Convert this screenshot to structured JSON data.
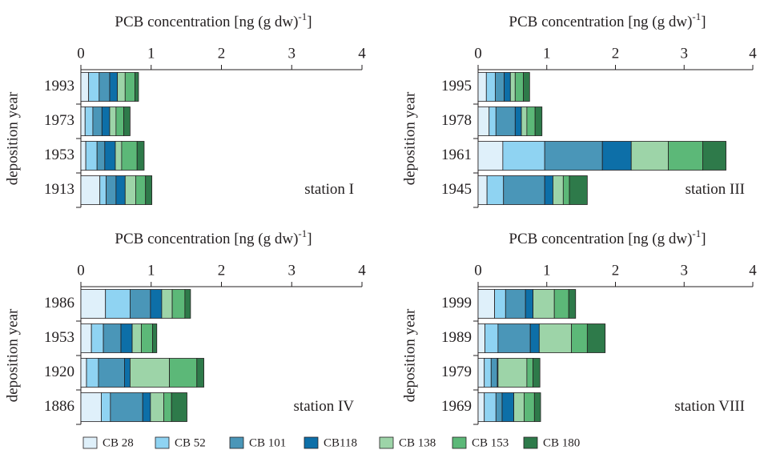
{
  "legend": [
    {
      "name": "CB 28",
      "color": "#dff0fa"
    },
    {
      "name": "CB 52",
      "color": "#8fd3f2"
    },
    {
      "name": "CB 101",
      "color": "#4a96b8"
    },
    {
      "name": "CB118",
      "color": "#0d6fa8"
    },
    {
      "name": "CB 138",
      "color": "#9dd4a8"
    },
    {
      "name": "CB 153",
      "color": "#5cb878"
    },
    {
      "name": "CB 180",
      "color": "#2e7a4a"
    }
  ],
  "chart_data": [
    {
      "type": "stacked-bar-horizontal",
      "xlabel": {
        "text": "PCB concentration [ng (g dw)",
        "superscript": "-1",
        "suffix": "]"
      },
      "ylabel": "deposition year",
      "annotation": "station I",
      "categories": [
        "1993",
        "1973",
        "1953",
        "1913"
      ],
      "xlim": [
        0,
        4
      ],
      "xticks": [
        0,
        1,
        2,
        3,
        4
      ],
      "segments": [
        [
          0.11,
          0.06,
          0.07,
          0.27
        ],
        [
          0.15,
          0.11,
          0.16,
          0.09
        ],
        [
          0.15,
          0.13,
          0.11,
          0.14
        ],
        [
          0.11,
          0.11,
          0.15,
          0.13
        ],
        [
          0.11,
          0.09,
          0.09,
          0.15
        ],
        [
          0.14,
          0.11,
          0.22,
          0.14
        ],
        [
          0.05,
          0.09,
          0.1,
          0.09
        ]
      ]
    },
    {
      "type": "stacked-bar-horizontal",
      "xlabel": {
        "text": "PCB concentration [ng (g dw)",
        "superscript": "-1",
        "suffix": "]"
      },
      "ylabel": "deposition year",
      "annotation": "station III",
      "categories": [
        "1995",
        "1978",
        "1961",
        "1945"
      ],
      "xlim": [
        0,
        4
      ],
      "xticks": [
        0,
        1,
        2,
        3,
        4
      ],
      "segments": [
        [
          0.12,
          0.16,
          0.36,
          0.13
        ],
        [
          0.13,
          0.1,
          0.61,
          0.24
        ],
        [
          0.13,
          0.28,
          0.84,
          0.6
        ],
        [
          0.09,
          0.09,
          0.42,
          0.12
        ],
        [
          0.07,
          0.08,
          0.54,
          0.15
        ],
        [
          0.12,
          0.12,
          0.5,
          0.09
        ],
        [
          0.09,
          0.1,
          0.34,
          0.26
        ]
      ]
    },
    {
      "type": "stacked-bar-horizontal",
      "xlabel": {
        "text": "PCB concentration [ng (g dw)",
        "superscript": "-1",
        "suffix": "]"
      },
      "ylabel": "deposition year",
      "annotation": "station IV",
      "categories": [
        "1986",
        "1953",
        "1920",
        "1886"
      ],
      "xlim": [
        0,
        4
      ],
      "xticks": [
        0,
        1,
        2,
        3,
        4
      ],
      "segments": [
        [
          0.35,
          0.15,
          0.08,
          0.29
        ],
        [
          0.35,
          0.17,
          0.17,
          0.13
        ],
        [
          0.29,
          0.25,
          0.37,
          0.46
        ],
        [
          0.16,
          0.16,
          0.08,
          0.11
        ],
        [
          0.15,
          0.13,
          0.56,
          0.19
        ],
        [
          0.18,
          0.16,
          0.39,
          0.11
        ],
        [
          0.08,
          0.06,
          0.1,
          0.22
        ]
      ]
    },
    {
      "type": "stacked-bar-horizontal",
      "xlabel": {
        "text": "PCB concentration [ng (g dw)",
        "superscript": "-1",
        "suffix": "]"
      },
      "ylabel": "deposition year",
      "annotation": "station VIII",
      "categories": [
        "1999",
        "1989",
        "1979",
        "1969"
      ],
      "xlim": [
        0,
        4
      ],
      "xticks": [
        0,
        1,
        2,
        3,
        4
      ],
      "segments": [
        [
          0.24,
          0.1,
          0.09,
          0.09
        ],
        [
          0.16,
          0.19,
          0.1,
          0.17
        ],
        [
          0.29,
          0.47,
          0.09,
          0.09
        ],
        [
          0.11,
          0.13,
          0.01,
          0.17
        ],
        [
          0.31,
          0.47,
          0.42,
          0.15
        ],
        [
          0.21,
          0.23,
          0.09,
          0.15
        ],
        [
          0.1,
          0.26,
          0.1,
          0.09
        ]
      ]
    }
  ]
}
